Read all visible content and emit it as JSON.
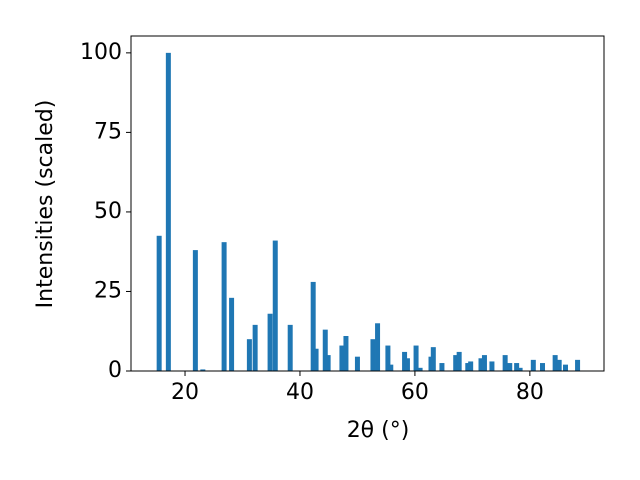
{
  "chart_data": {
    "type": "bar",
    "x_label": "2θ (°)",
    "y_label": "Intensities (scaled)",
    "x": [
      15.5,
      17.1,
      21.8,
      23.1,
      26.8,
      28.1,
      31.2,
      32.2,
      34.8,
      35.7,
      38.3,
      42.3,
      42.8,
      44.4,
      44.9,
      47.3,
      48.0,
      50.0,
      52.7,
      53.5,
      55.3,
      55.8,
      58.2,
      58.7,
      60.2,
      60.9,
      62.8,
      63.2,
      64.7,
      67.1,
      67.7,
      69.2,
      69.7,
      71.5,
      72.1,
      73.4,
      75.7,
      76.5,
      77.7,
      78.3,
      80.6,
      82.2,
      84.4,
      85.1,
      86.2,
      88.3
    ],
    "values": [
      42.5,
      100,
      38,
      0.5,
      40.5,
      23,
      10,
      14.5,
      18,
      41,
      14.5,
      28,
      7,
      13,
      5,
      8,
      11,
      4.5,
      10,
      15,
      8,
      2,
      6,
      4,
      8,
      1,
      4.5,
      7.5,
      2.5,
      5,
      6,
      2.5,
      3,
      4,
      5,
      3,
      5,
      2.5,
      2.5,
      1,
      3.5,
      2.5,
      5,
      3.5,
      2,
      3.5
    ],
    "color": "#1f77b4",
    "xlim": [
      10.6,
      92.9
    ],
    "ylim": [
      0,
      105.3
    ],
    "xticks": [
      20,
      40,
      60,
      80
    ],
    "yticks": [
      0,
      25,
      50,
      75,
      100
    ],
    "grid": false
  }
}
